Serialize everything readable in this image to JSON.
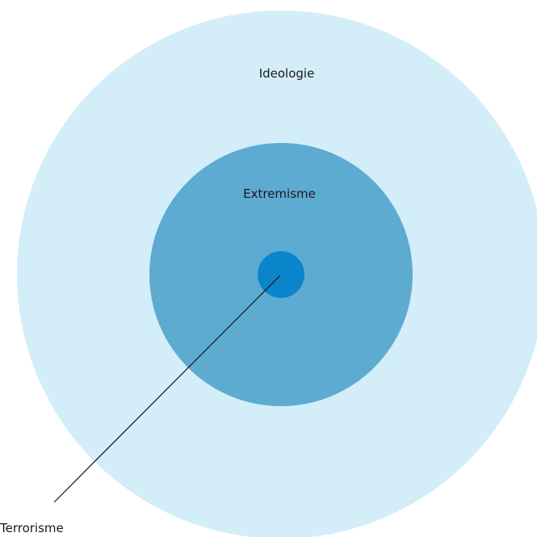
{
  "nodes": [
    {
      "label": "Ideologie"
    },
    {
      "label": "Extremisme"
    },
    {
      "label": "Terrorisme"
    }
  ]
}
